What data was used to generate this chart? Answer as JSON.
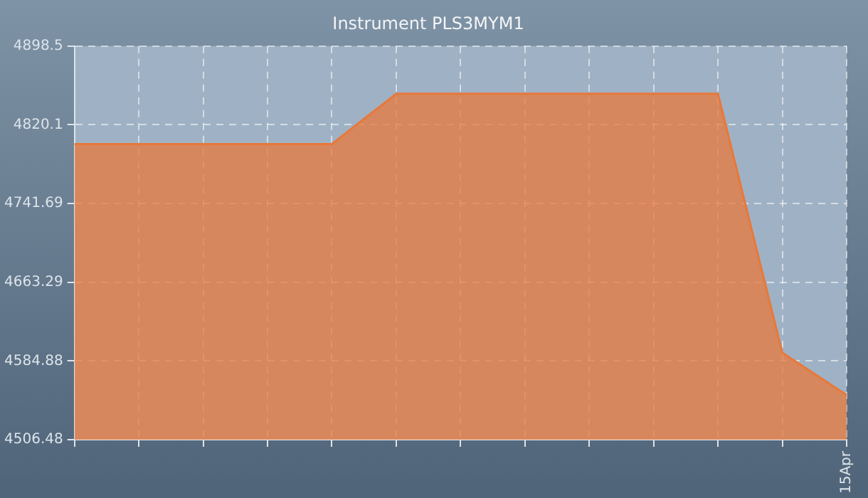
{
  "chart_data": {
    "type": "area",
    "title": "Instrument PLS3MYM1",
    "categories": [
      null,
      null,
      null,
      null,
      null,
      null,
      null,
      null,
      null,
      null,
      null,
      null,
      "15Apr"
    ],
    "series": [
      {
        "color": "#e8783a",
        "values": [
          4801,
          4801,
          4801,
          4801,
          4801,
          4851,
          4851,
          4851,
          4851,
          4851,
          4851,
          4593,
          4551
        ]
      }
    ],
    "ylim": [
      4506.48,
      4898.5
    ],
    "yticks": [
      4506.48,
      4584.88,
      4663.29,
      4741.69,
      4820.1,
      4898.5
    ],
    "grid": true,
    "legend": false
  }
}
